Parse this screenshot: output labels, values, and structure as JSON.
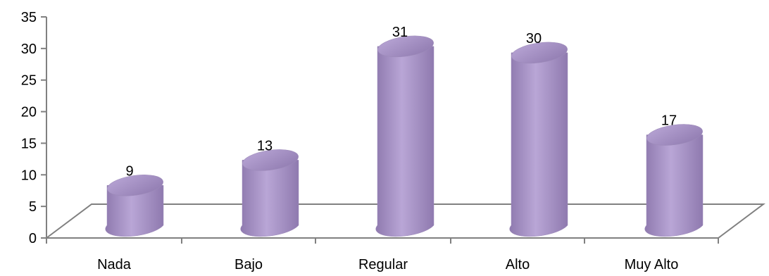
{
  "chart_data": {
    "type": "bar",
    "style": "3d-cylinder",
    "categories": [
      "Nada",
      "Bajo",
      "Regular",
      "Alto",
      "Muy Alto"
    ],
    "values": [
      9,
      13,
      31,
      30,
      17
    ],
    "data_labels": [
      "9",
      "13",
      "31",
      "30",
      "17"
    ],
    "y_ticks": [
      "0",
      "5",
      "10",
      "15",
      "20",
      "25",
      "30",
      "35"
    ],
    "ylim": [
      0,
      35
    ],
    "grid": false,
    "legend": "none",
    "bar_color": "#b9a6d6",
    "bar_shade_color": "#8f7aaf",
    "axis_color": "#808080"
  }
}
